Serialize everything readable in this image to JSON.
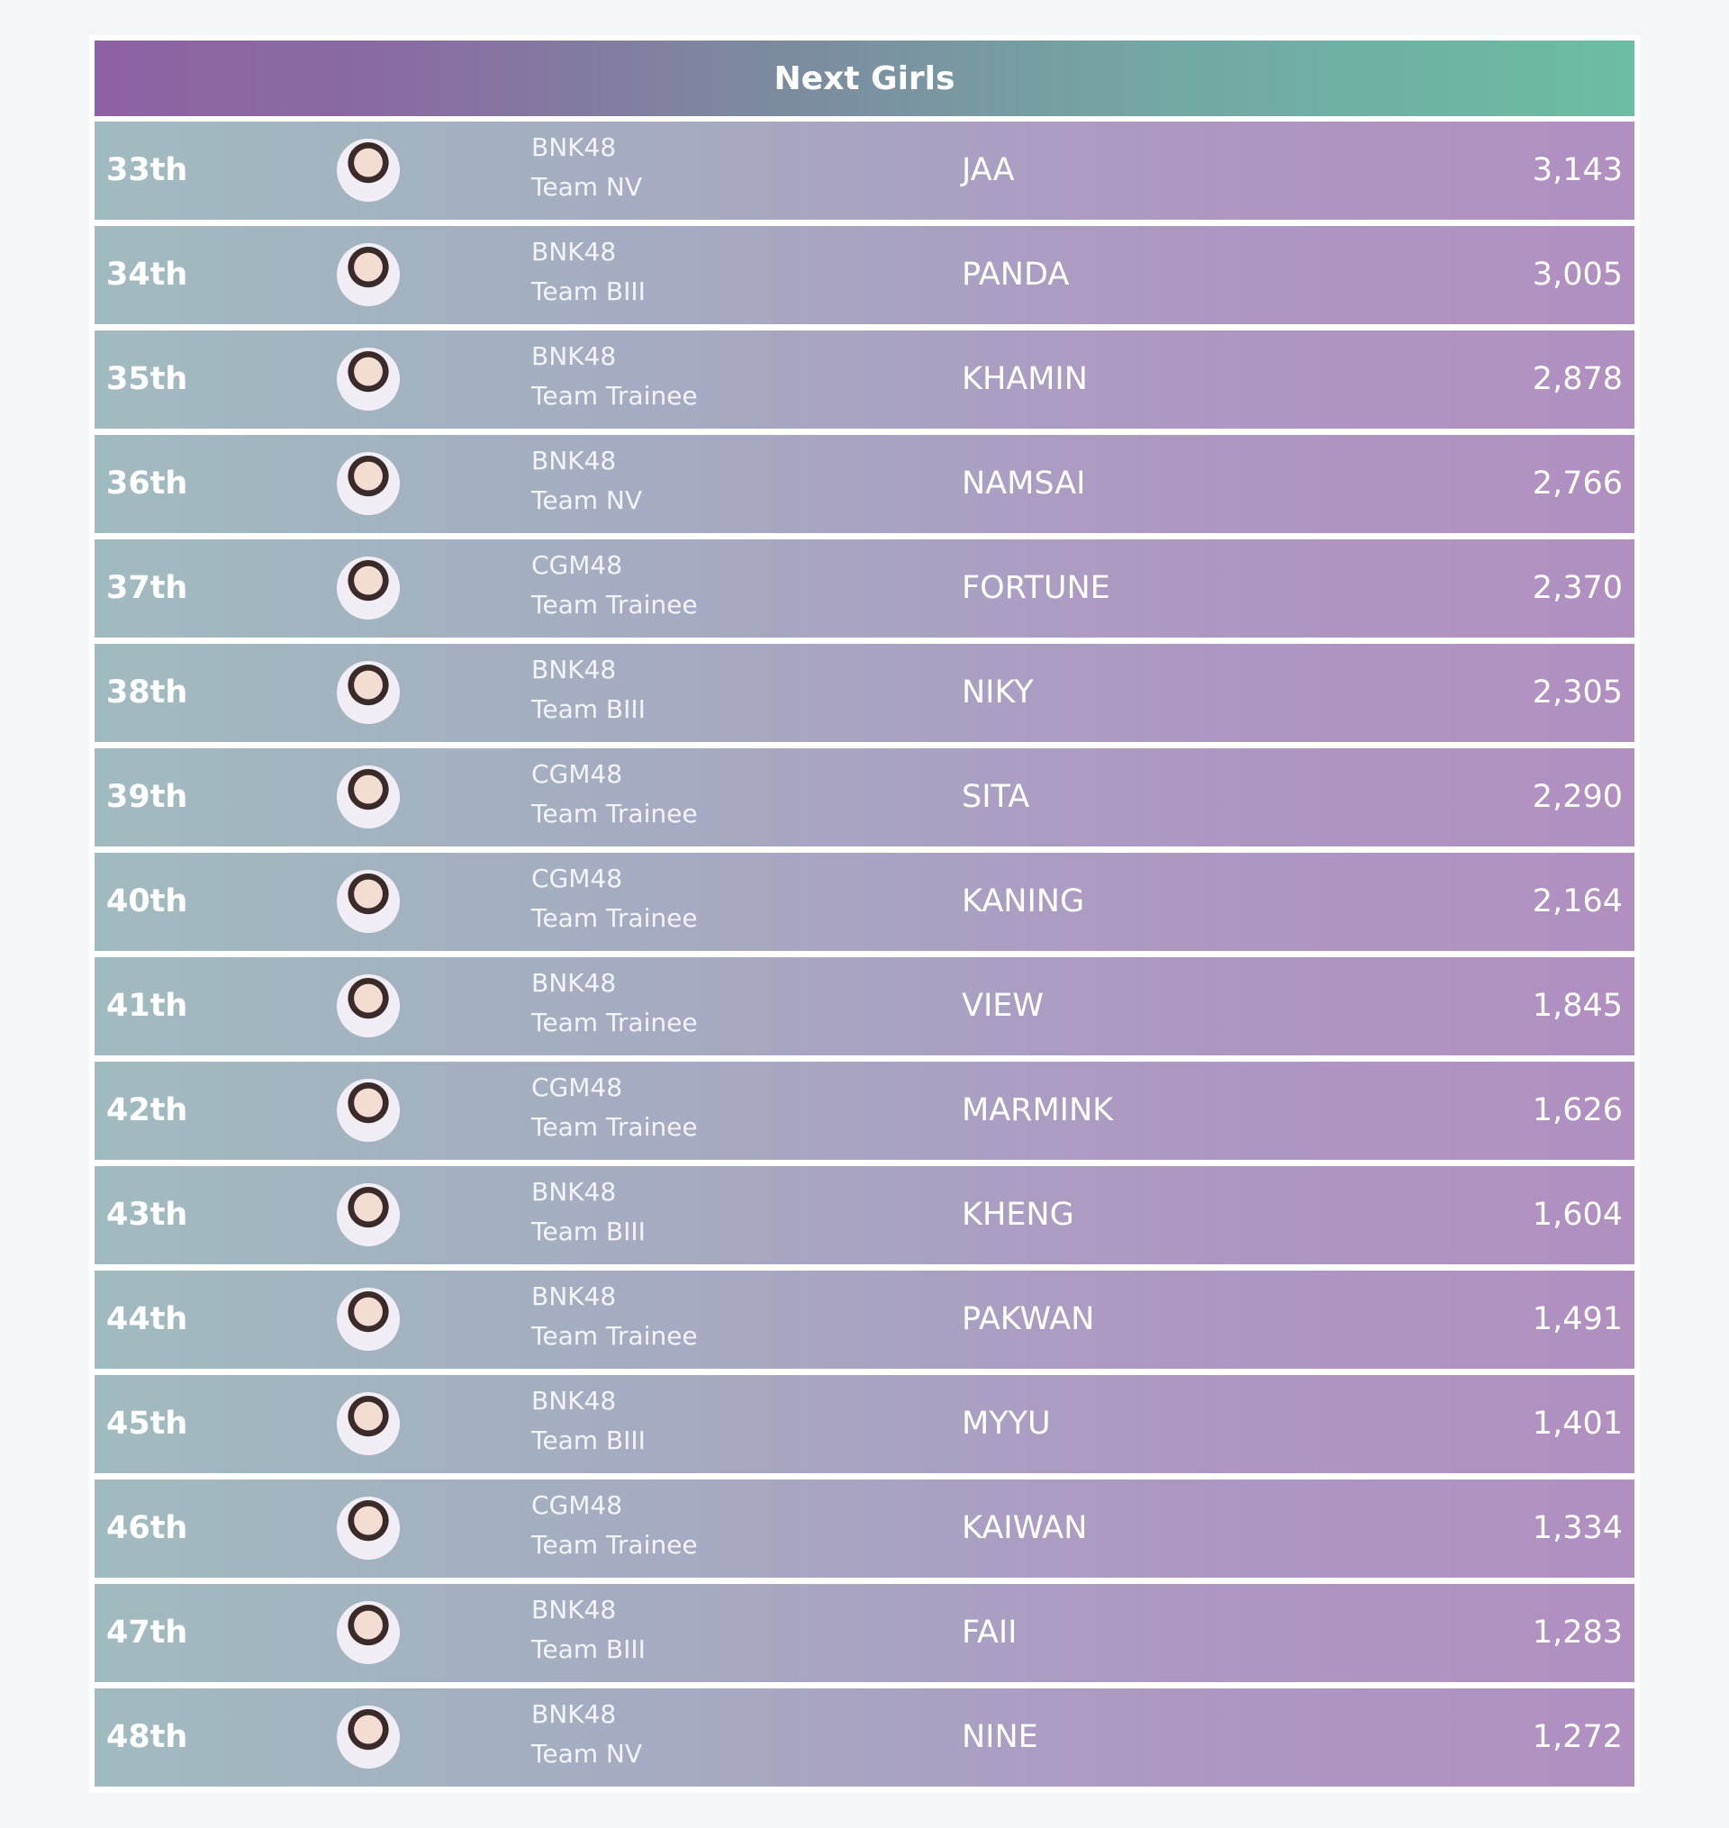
{
  "header": {
    "title": "Next Girls"
  },
  "table": {
    "rows": [
      {
        "rank": "33th",
        "group": "BNK48",
        "team": "Team NV",
        "name": "JAA",
        "votes": "3,143"
      },
      {
        "rank": "34th",
        "group": "BNK48",
        "team": "Team BIII",
        "name": "PANDA",
        "votes": "3,005"
      },
      {
        "rank": "35th",
        "group": "BNK48",
        "team": "Team Trainee",
        "name": "KHAMIN",
        "votes": "2,878"
      },
      {
        "rank": "36th",
        "group": "BNK48",
        "team": "Team NV",
        "name": "NAMSAI",
        "votes": "2,766"
      },
      {
        "rank": "37th",
        "group": "CGM48",
        "team": "Team Trainee",
        "name": "FORTUNE",
        "votes": "2,370"
      },
      {
        "rank": "38th",
        "group": "BNK48",
        "team": "Team BIII",
        "name": "NIKY",
        "votes": "2,305"
      },
      {
        "rank": "39th",
        "group": "CGM48",
        "team": "Team Trainee",
        "name": "SITA",
        "votes": "2,290"
      },
      {
        "rank": "40th",
        "group": "CGM48",
        "team": "Team Trainee",
        "name": "KANING",
        "votes": "2,164"
      },
      {
        "rank": "41th",
        "group": "BNK48",
        "team": "Team Trainee",
        "name": "VIEW",
        "votes": "1,845"
      },
      {
        "rank": "42th",
        "group": "CGM48",
        "team": "Team Trainee",
        "name": "MARMINK",
        "votes": "1,626"
      },
      {
        "rank": "43th",
        "group": "BNK48",
        "team": "Team BIII",
        "name": "KHENG",
        "votes": "1,604"
      },
      {
        "rank": "44th",
        "group": "BNK48",
        "team": "Team Trainee",
        "name": "PAKWAN",
        "votes": "1,491"
      },
      {
        "rank": "45th",
        "group": "BNK48",
        "team": "Team BIII",
        "name": "MYYU",
        "votes": "1,401"
      },
      {
        "rank": "46th",
        "group": "CGM48",
        "team": "Team Trainee",
        "name": "KAIWAN",
        "votes": "1,334"
      },
      {
        "rank": "47th",
        "group": "BNK48",
        "team": "Team BIII",
        "name": "FAII",
        "votes": "1,283"
      },
      {
        "rank": "48th",
        "group": "BNK48",
        "team": "Team NV",
        "name": "NINE",
        "votes": "1,272"
      }
    ]
  }
}
